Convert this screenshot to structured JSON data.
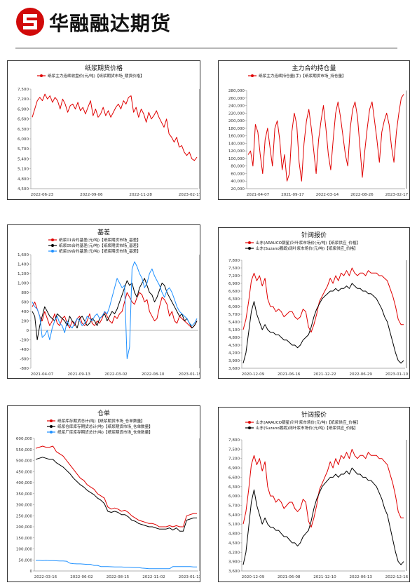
{
  "header": {
    "brand": "华融融达期货"
  },
  "colors": {
    "red": "#e00000",
    "black": "#000000",
    "blue": "#1e90ff"
  },
  "chart_data": [
    {
      "id": "c1",
      "type": "line",
      "title": "纸浆期货价格",
      "ylim": [
        4500,
        7500
      ],
      "yticks": [
        "7,500",
        "7,200",
        "6,900",
        "6,600",
        "6,300",
        "6,000",
        "5,700",
        "5,400",
        "5,100",
        "4,800",
        "4,500"
      ],
      "xticks": [
        "2022-06-23",
        "2022-09-06",
        "2022-11-28",
        "2023-02-17"
      ],
      "series": [
        {
          "name": "纸浆主力连续收盘价(元/吨)【纸浆期货市场_期货价格】",
          "color": "red",
          "values": [
            6650,
            6900,
            7150,
            7250,
            7150,
            7350,
            7200,
            7300,
            7100,
            7250,
            7150,
            6900,
            7200,
            7050,
            6800,
            7000,
            7050,
            6900,
            7100,
            6850,
            6950,
            6750,
            6950,
            7150,
            6700,
            6900,
            6650,
            6750,
            6950,
            6700,
            6850,
            6650,
            6800,
            6950,
            7050,
            6900,
            7150,
            7050,
            7250,
            7300,
            6800,
            6950,
            6650,
            6900,
            6750,
            6500,
            6800,
            6600,
            6700,
            6850,
            6650,
            6500,
            6350,
            6600,
            6150,
            6050,
            5900,
            6050,
            5750,
            5800,
            5600,
            5500,
            5600,
            5400,
            5350,
            5450
          ]
        }
      ]
    },
    {
      "id": "c2",
      "type": "line",
      "title": "主力合约持仓量",
      "ylim": [
        20000,
        280000
      ],
      "yticks": [
        "280,000",
        "260,000",
        "240,000",
        "220,000",
        "200,000",
        "180,000",
        "160,000",
        "140,000",
        "120,000",
        "100,000",
        "80,000",
        "60,000",
        "40,000",
        "20,000"
      ],
      "xticks": [
        "2021-04-07",
        "2021-09-17",
        "2022-03-14",
        "2022-08-26",
        "2023-02-17"
      ],
      "series": [
        {
          "name": "纸浆主力连续持仓量(手)【纸浆期货市场_持仓量】",
          "color": "red",
          "values": [
            110000,
            120000,
            80000,
            190000,
            170000,
            110000,
            60000,
            150000,
            180000,
            130000,
            80000,
            180000,
            200000,
            150000,
            70000,
            110000,
            40000,
            60000,
            170000,
            220000,
            190000,
            90000,
            40000,
            140000,
            200000,
            230000,
            180000,
            120000,
            60000,
            150000,
            200000,
            240000,
            180000,
            110000,
            70000,
            150000,
            220000,
            250000,
            210000,
            160000,
            110000,
            80000,
            180000,
            230000,
            250000,
            210000,
            130000,
            50000,
            120000,
            180000,
            230000,
            250000,
            200000,
            150000,
            90000,
            170000,
            200000,
            220000,
            190000,
            130000,
            90000,
            170000,
            220000,
            260000,
            270000
          ]
        }
      ]
    },
    {
      "id": "c3",
      "type": "line",
      "title": "基差",
      "ylim": [
        -800,
        1600
      ],
      "yticks": [
        "1,600",
        "1,400",
        "1,200",
        "1,000",
        "800",
        "600",
        "400",
        "200",
        "0",
        "-200",
        "-400",
        "-600",
        "-800"
      ],
      "xticks": [
        "2021-04-07",
        "2021-09-13",
        "2022-03-02",
        "2022-08-10",
        "2023-01-19"
      ],
      "series": [
        {
          "name": "纸浆01合约基差(元/吨)【纸浆期货市场_基差】",
          "color": "red",
          "values": [
            500,
            600,
            450,
            300,
            200,
            400,
            250,
            100,
            200,
            350,
            150,
            100,
            250,
            300,
            150,
            50,
            200,
            100,
            250,
            300,
            150,
            100,
            200,
            350,
            150,
            100,
            200,
            150,
            250,
            400,
            300,
            200,
            150,
            300,
            250,
            350,
            400,
            600,
            800,
            700,
            600,
            550,
            700,
            800,
            750,
            600,
            650,
            400,
            300,
            200,
            250,
            500,
            700,
            650,
            550,
            300,
            400,
            200,
            150,
            300,
            250,
            200,
            150,
            100,
            50,
            100,
            200
          ]
        },
        {
          "name": "纸浆05合约基差(元/吨)【纸浆期货市场_基差】",
          "color": "black",
          "values": [
            400,
            300,
            -200,
            100,
            300,
            500,
            400,
            300,
            250,
            200,
            350,
            300,
            250,
            200,
            100,
            300,
            200,
            150,
            50,
            250,
            300,
            200,
            100,
            150,
            250,
            200,
            100,
            250,
            300,
            350,
            200,
            300,
            400,
            350,
            450,
            600,
            750,
            900,
            1050,
            950,
            1000,
            800,
            700,
            900,
            1000,
            1100,
            950,
            800,
            750,
            600,
            700,
            850,
            1000,
            950,
            800,
            700,
            600,
            500,
            400,
            300,
            350,
            200,
            250,
            150,
            50,
            100,
            200
          ]
        },
        {
          "name": "纸浆09合约基差(元/吨)【纸浆期货市场_基差】",
          "color": "blue",
          "values": [
            600,
            500,
            450,
            300,
            -150,
            -100,
            0,
            -200,
            50,
            200,
            300,
            150,
            100,
            -50,
            200,
            100,
            50,
            150,
            250,
            200,
            100,
            150,
            300,
            250,
            200,
            300,
            350,
            250,
            300,
            400,
            350,
            500,
            700,
            900,
            1100,
            1000,
            900,
            950,
            -600,
            -350,
            1300,
            1450,
            1350,
            1200,
            1100,
            900,
            1000,
            1200,
            1300,
            1150,
            1050,
            950,
            800,
            700,
            850,
            900,
            800,
            650,
            500,
            400,
            350,
            300,
            250,
            150,
            100,
            150,
            250
          ]
        }
      ]
    },
    {
      "id": "c4",
      "type": "line",
      "title": "针阔报价",
      "ylim": [
        3600,
        7800
      ],
      "yticks": [
        "7,800",
        "7,500",
        "7,200",
        "6,900",
        "6,600",
        "6,300",
        "6,000",
        "5,700",
        "5,400",
        "5,100",
        "4,800",
        "4,500",
        "4,200",
        "3,900",
        "3,600"
      ],
      "xticks": [
        "2020-12-09",
        "2021-06-16",
        "2021-12-22",
        "2022-06-29",
        "2023-01-10"
      ],
      "series": [
        {
          "name": "山东(ARAUCO银星)针叶浆市场价(元/吨)【纸浆供应_价格】",
          "color": "red",
          "values": [
            5100,
            5500,
            6200,
            7000,
            7300,
            7000,
            7200,
            6800,
            7100,
            6300,
            6000,
            6000,
            5800,
            5900,
            5800,
            5600,
            5700,
            5800,
            5800,
            5600,
            5500,
            5600,
            5900,
            5800,
            5200,
            5000,
            5300,
            5700,
            6200,
            6400,
            6600,
            6800,
            7100,
            6900,
            7200,
            7000,
            7300,
            7200,
            7400,
            7200,
            7500,
            7300,
            7200,
            7300,
            7300,
            7200,
            7400,
            7300,
            7300,
            7300,
            7200,
            7200,
            7100,
            7000,
            6700,
            6400,
            6000,
            5500,
            5300,
            5300
          ]
        },
        {
          "name": "山东(Suzano鹦鹉)阔叶浆市场价(元/吨)【纸浆供应_价格】",
          "color": "black",
          "values": [
            3800,
            4200,
            5000,
            5800,
            6200,
            5700,
            5400,
            5100,
            5300,
            5100,
            5000,
            5000,
            4900,
            4900,
            4800,
            4700,
            4700,
            4600,
            4500,
            4500,
            4400,
            4500,
            4700,
            4800,
            4900,
            5200,
            5600,
            5900,
            6100,
            6300,
            6400,
            6500,
            6600,
            6600,
            6700,
            6600,
            6700,
            6700,
            6800,
            6700,
            6900,
            6800,
            6700,
            6700,
            6600,
            6600,
            6500,
            6500,
            6400,
            6300,
            6100,
            5900,
            5600,
            5400,
            5000,
            4600,
            4200,
            3900,
            3800,
            3900
          ]
        }
      ]
    },
    {
      "id": "c5",
      "type": "line",
      "title": "仓单",
      "ylim": [
        0,
        600000
      ],
      "yticks": [
        "600,000",
        "550,000",
        "500,000",
        "450,000",
        "400,000",
        "350,000",
        "300,000",
        "250,000",
        "200,000",
        "150,000",
        "100,000",
        "50,000",
        "0"
      ],
      "xticks": [
        "2022-03-16",
        "2022-06-02",
        "2022-08-15",
        "2022-11-02",
        "2023-01-13"
      ],
      "series": [
        {
          "name": "纸浆库存期货总计(吨)【纸浆期货市场_仓单数量】",
          "color": "red",
          "values": [
            555000,
            560000,
            565000,
            560000,
            560000,
            565000,
            540000,
            530000,
            520000,
            500000,
            480000,
            460000,
            440000,
            420000,
            410000,
            390000,
            380000,
            370000,
            350000,
            340000,
            330000,
            290000,
            280000,
            285000,
            280000,
            270000,
            275000,
            265000,
            250000,
            240000,
            230000,
            225000,
            220000,
            215000,
            215000,
            210000,
            200000,
            200000,
            200000,
            205000,
            200000,
            205000,
            200000,
            200000,
            250000,
            255000,
            260000,
            260000
          ]
        },
        {
          "name": "纸浆仓库库存期货总计(吨)【纸浆期货市场_仓单数量】",
          "color": "black",
          "values": [
            505000,
            510000,
            515000,
            510000,
            505000,
            505000,
            490000,
            480000,
            470000,
            455000,
            440000,
            420000,
            405000,
            390000,
            380000,
            365000,
            355000,
            345000,
            330000,
            320000,
            305000,
            270000,
            265000,
            270000,
            265000,
            255000,
            255000,
            245000,
            230000,
            225000,
            215000,
            210000,
            205000,
            200000,
            200000,
            195000,
            190000,
            190000,
            190000,
            195000,
            185000,
            195000,
            180000,
            180000,
            230000,
            235000,
            240000,
            240000
          ]
        },
        {
          "name": "纸浆厂库库存期货总计(吨)【纸浆期货市场_仓单数量】",
          "color": "blue",
          "values": [
            48000,
            48000,
            47000,
            48000,
            47000,
            47000,
            46000,
            45000,
            45000,
            44000,
            35000,
            33000,
            32000,
            32000,
            31000,
            30000,
            30000,
            25000,
            25000,
            20000,
            20000,
            20000,
            19000,
            18000,
            18000,
            18000,
            17000,
            17000,
            16000,
            15000,
            15000,
            13000,
            12000,
            10000,
            10000,
            10000,
            10000,
            10000,
            10000,
            10000,
            20000,
            20000,
            20000,
            20000,
            20000,
            20000,
            18000,
            18000
          ]
        }
      ]
    },
    {
      "id": "c6",
      "type": "line",
      "title": "针阔报价",
      "ylim": [
        3600,
        7800
      ],
      "yticks": [
        "7,800",
        "7,500",
        "7,200",
        "6,900",
        "6,600",
        "6,300",
        "6,000",
        "5,700",
        "5,400",
        "5,100",
        "4,800",
        "4,500",
        "4,200",
        "3,900",
        "3,600"
      ],
      "xticks": [
        "2020-12-09",
        "2021-06-08",
        "2021-12-10",
        "2022-06-13",
        "2022-12-16"
      ],
      "series": [
        {
          "name": "山东(ARAUCO银星)针叶浆市场价(元/吨)【纸浆供应_价格】",
          "color": "red",
          "values": [
            5100,
            5500,
            6200,
            7000,
            7300,
            7000,
            7200,
            6800,
            7100,
            6300,
            6000,
            6000,
            5800,
            5900,
            5800,
            5600,
            5700,
            5800,
            5800,
            5600,
            5500,
            5600,
            5900,
            5800,
            5200,
            5000,
            5300,
            5700,
            6200,
            6400,
            6600,
            6800,
            7100,
            6900,
            7200,
            7000,
            7300,
            7200,
            7400,
            7200,
            7500,
            7300,
            7200,
            7300,
            7300,
            7200,
            7400,
            7300,
            7300,
            7300,
            7200,
            7200,
            7100,
            7000,
            6700,
            6400,
            6000,
            5500,
            5300,
            5300
          ]
        },
        {
          "name": "山东(Suzano鹦鹉)阔叶浆市场价(元/吨)【纸浆供应_价格】",
          "color": "black",
          "values": [
            3800,
            4200,
            5000,
            5800,
            6200,
            5700,
            5400,
            5100,
            5300,
            5100,
            5000,
            5000,
            4900,
            4900,
            4800,
            4700,
            4700,
            4600,
            4500,
            4500,
            4400,
            4500,
            4700,
            4800,
            4900,
            5200,
            5600,
            5900,
            6100,
            6300,
            6400,
            6500,
            6600,
            6600,
            6700,
            6600,
            6700,
            6700,
            6800,
            6700,
            6900,
            6800,
            6700,
            6700,
            6600,
            6600,
            6500,
            6500,
            6400,
            6300,
            6100,
            5900,
            5600,
            5400,
            5000,
            4600,
            4200,
            3900,
            3800,
            3900
          ]
        }
      ]
    }
  ]
}
